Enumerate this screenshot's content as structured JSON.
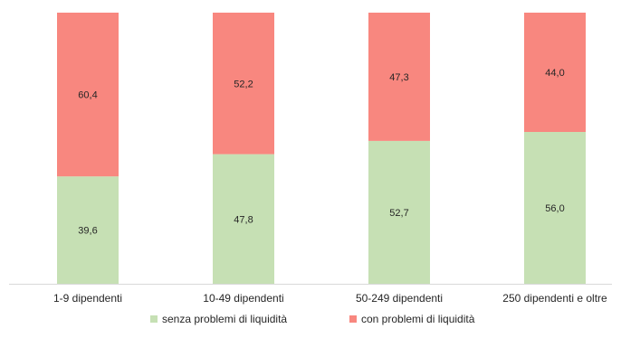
{
  "chart_data": {
    "type": "bar",
    "stacked": true,
    "percent_stacked": true,
    "categories": [
      "1-9 dipendenti",
      "10-49 dipendenti",
      "50-249 dipendenti",
      "250 dipendenti e oltre"
    ],
    "series": [
      {
        "name": "senza problemi di liquidità",
        "values": [
          39.6,
          47.8,
          52.7,
          56.0
        ],
        "labels": [
          "39,6",
          "47,8",
          "52,7",
          "56,0"
        ],
        "color": "#c6e0b4"
      },
      {
        "name": "con problemi di liquidità",
        "values": [
          60.4,
          52.2,
          47.3,
          44.0
        ],
        "labels": [
          "60,4",
          "52,2",
          "47,3",
          "44,0"
        ],
        "color": "#f8877f"
      }
    ],
    "ylim": [
      0,
      100
    ],
    "y_axis_visible": false,
    "grid": false,
    "legend_position": "bottom",
    "title": "",
    "xlabel": "",
    "ylabel": ""
  }
}
